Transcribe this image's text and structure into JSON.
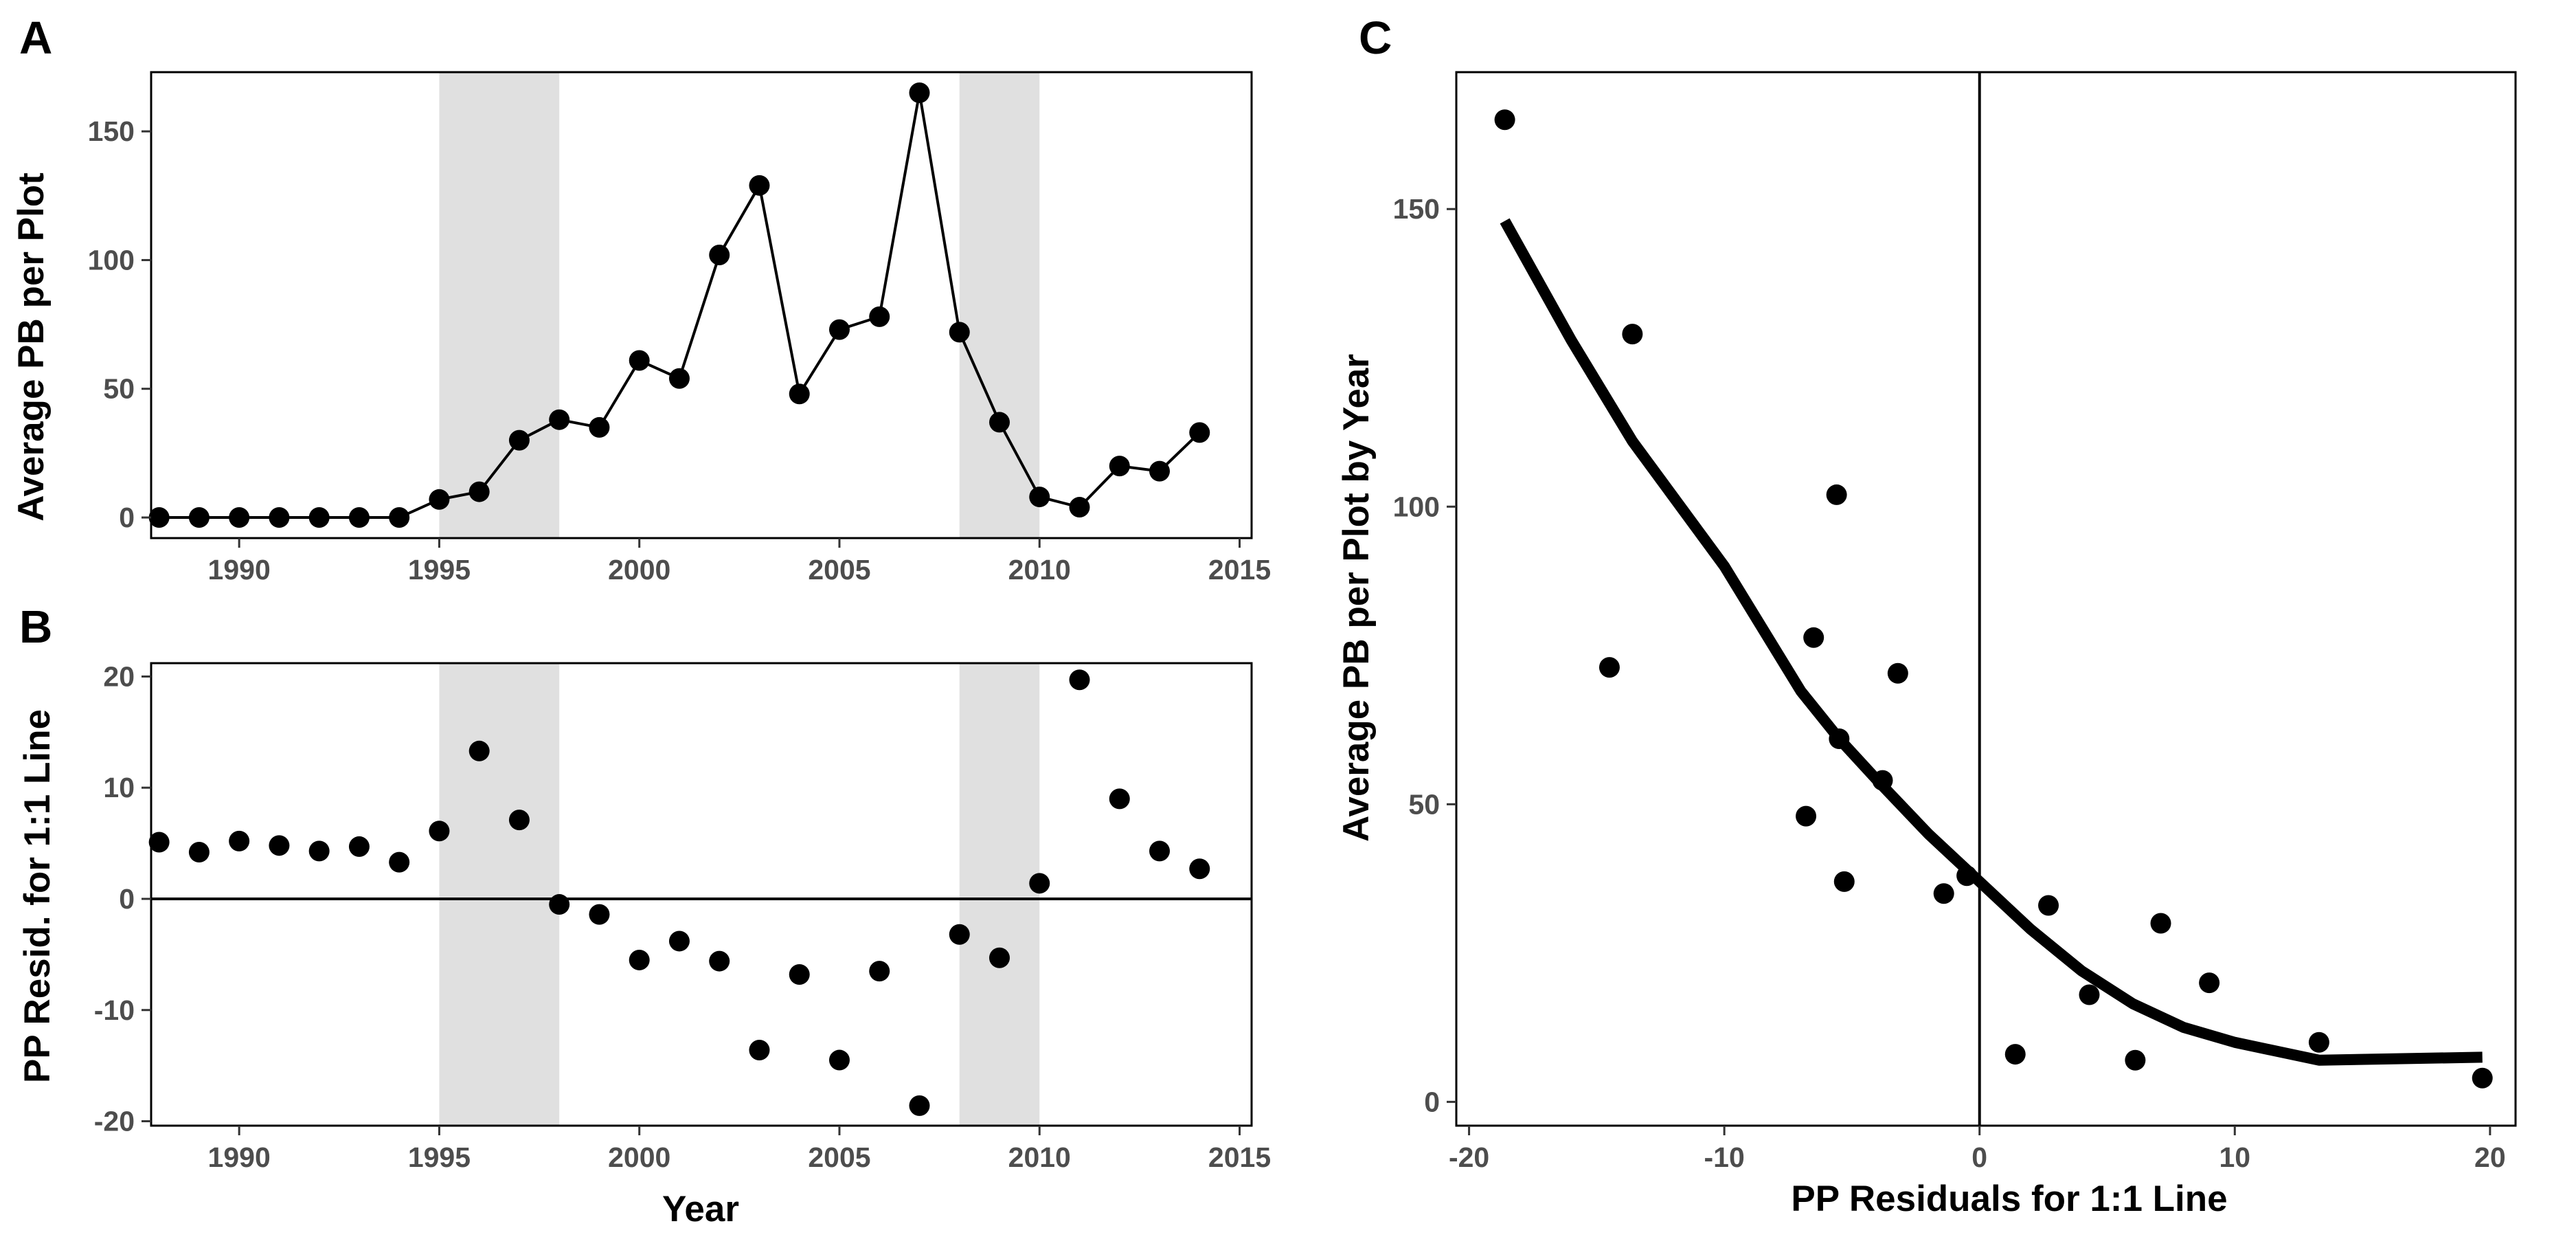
{
  "panels": {
    "a": {
      "label": "A",
      "ylabel": "Average PB per Plot"
    },
    "b": {
      "label": "B",
      "ylabel": "PP Resid. for 1:1 Line",
      "xlabel": "Year"
    },
    "c": {
      "label": "C",
      "ylabel": "Average PB per Plot by Year",
      "xlabel": "PP Residuals for 1:1 Line"
    }
  },
  "colors": {
    "points": "#000000",
    "shade": "#e0e0e0",
    "axis": "#000000",
    "ticktext": "#4d4d4d"
  },
  "chart_data": [
    {
      "id": "a",
      "type": "line",
      "title": "",
      "xlabel": "",
      "ylabel": "Average PB per Plot",
      "xlim": [
        1987.8,
        2015.3
      ],
      "ylim": [
        -8,
        173
      ],
      "xticks": [
        1990,
        1995,
        2000,
        2005,
        2010,
        2015
      ],
      "yticks": [
        0,
        50,
        100,
        150
      ],
      "grid": false,
      "shaded_x_ranges": [
        [
          1995,
          1998
        ],
        [
          2008,
          2010
        ]
      ],
      "x": [
        1988,
        1989,
        1990,
        1991,
        1992,
        1993,
        1994,
        1995,
        1996,
        1997,
        1998,
        1999,
        2000,
        2001,
        2002,
        2003,
        2004,
        2005,
        2006,
        2007,
        2008,
        2009,
        2010,
        2011,
        2012,
        2013,
        2014
      ],
      "y": [
        0,
        0,
        0,
        0,
        0,
        0,
        0,
        7,
        10,
        30,
        38,
        35,
        61,
        54,
        102,
        129,
        48,
        73,
        78,
        165,
        72,
        37,
        8,
        4,
        20,
        18,
        33
      ]
    },
    {
      "id": "b",
      "type": "scatter",
      "title": "",
      "xlabel": "Year",
      "ylabel": "PP Resid. for 1:1 Line",
      "xlim": [
        1987.8,
        2015.3
      ],
      "ylim": [
        -20.4,
        21.2
      ],
      "xticks": [
        1990,
        1995,
        2000,
        2005,
        2010,
        2015
      ],
      "yticks": [
        -20,
        -10,
        0,
        10,
        20
      ],
      "grid": false,
      "reference_line_y": 0,
      "shaded_x_ranges": [
        [
          1995,
          1998
        ],
        [
          2008,
          2010
        ]
      ],
      "x": [
        1988,
        1989,
        1990,
        1991,
        1992,
        1993,
        1994,
        1995,
        1996,
        1997,
        1998,
        1999,
        2000,
        2001,
        2002,
        2003,
        2004,
        2005,
        2006,
        2007,
        2008,
        2009,
        2010,
        2011,
        2012,
        2013,
        2014
      ],
      "y": [
        5.1,
        4.2,
        5.2,
        4.8,
        4.3,
        4.7,
        3.3,
        6.1,
        13.3,
        7.1,
        -0.5,
        -1.4,
        -5.5,
        -3.8,
        -5.6,
        -13.6,
        -6.8,
        -14.5,
        -6.5,
        -18.6,
        -3.2,
        -5.3,
        1.4,
        19.7,
        9.0,
        4.3,
        2.7
      ]
    },
    {
      "id": "c",
      "type": "scatter",
      "title": "",
      "xlabel": "PP Residuals for 1:1 Line",
      "ylabel": "Average PB per Plot by Year",
      "xlim": [
        -20.5,
        21.0
      ],
      "ylim": [
        -4,
        173
      ],
      "xticks": [
        -20,
        -10,
        0,
        10,
        20
      ],
      "yticks": [
        0,
        50,
        100,
        150
      ],
      "grid": false,
      "reference_line_x": 0,
      "points": [
        [
          -18.6,
          165
        ],
        [
          -13.6,
          129
        ],
        [
          -14.5,
          73
        ],
        [
          -5.6,
          102
        ],
        [
          -6.5,
          78
        ],
        [
          -3.2,
          72
        ],
        [
          -5.5,
          61
        ],
        [
          -3.8,
          54
        ],
        [
          -6.8,
          48
        ],
        [
          -5.3,
          37
        ],
        [
          -1.4,
          35
        ],
        [
          -0.5,
          38
        ],
        [
          1.4,
          8
        ],
        [
          2.7,
          33
        ],
        [
          4.3,
          18
        ],
        [
          6.1,
          7
        ],
        [
          7.1,
          30
        ],
        [
          9.0,
          20
        ],
        [
          13.3,
          10
        ],
        [
          19.7,
          4
        ]
      ],
      "smooth_line": [
        [
          -18.6,
          148
        ],
        [
          -16,
          128
        ],
        [
          -13.6,
          111
        ],
        [
          -10,
          90
        ],
        [
          -7,
          69
        ],
        [
          -5.5,
          61
        ],
        [
          -4,
          54
        ],
        [
          -2,
          45
        ],
        [
          0,
          37
        ],
        [
          2,
          29
        ],
        [
          4,
          22
        ],
        [
          6,
          16.5
        ],
        [
          8,
          12.5
        ],
        [
          10,
          10
        ],
        [
          13.3,
          7
        ],
        [
          19.7,
          7.5
        ]
      ]
    }
  ]
}
